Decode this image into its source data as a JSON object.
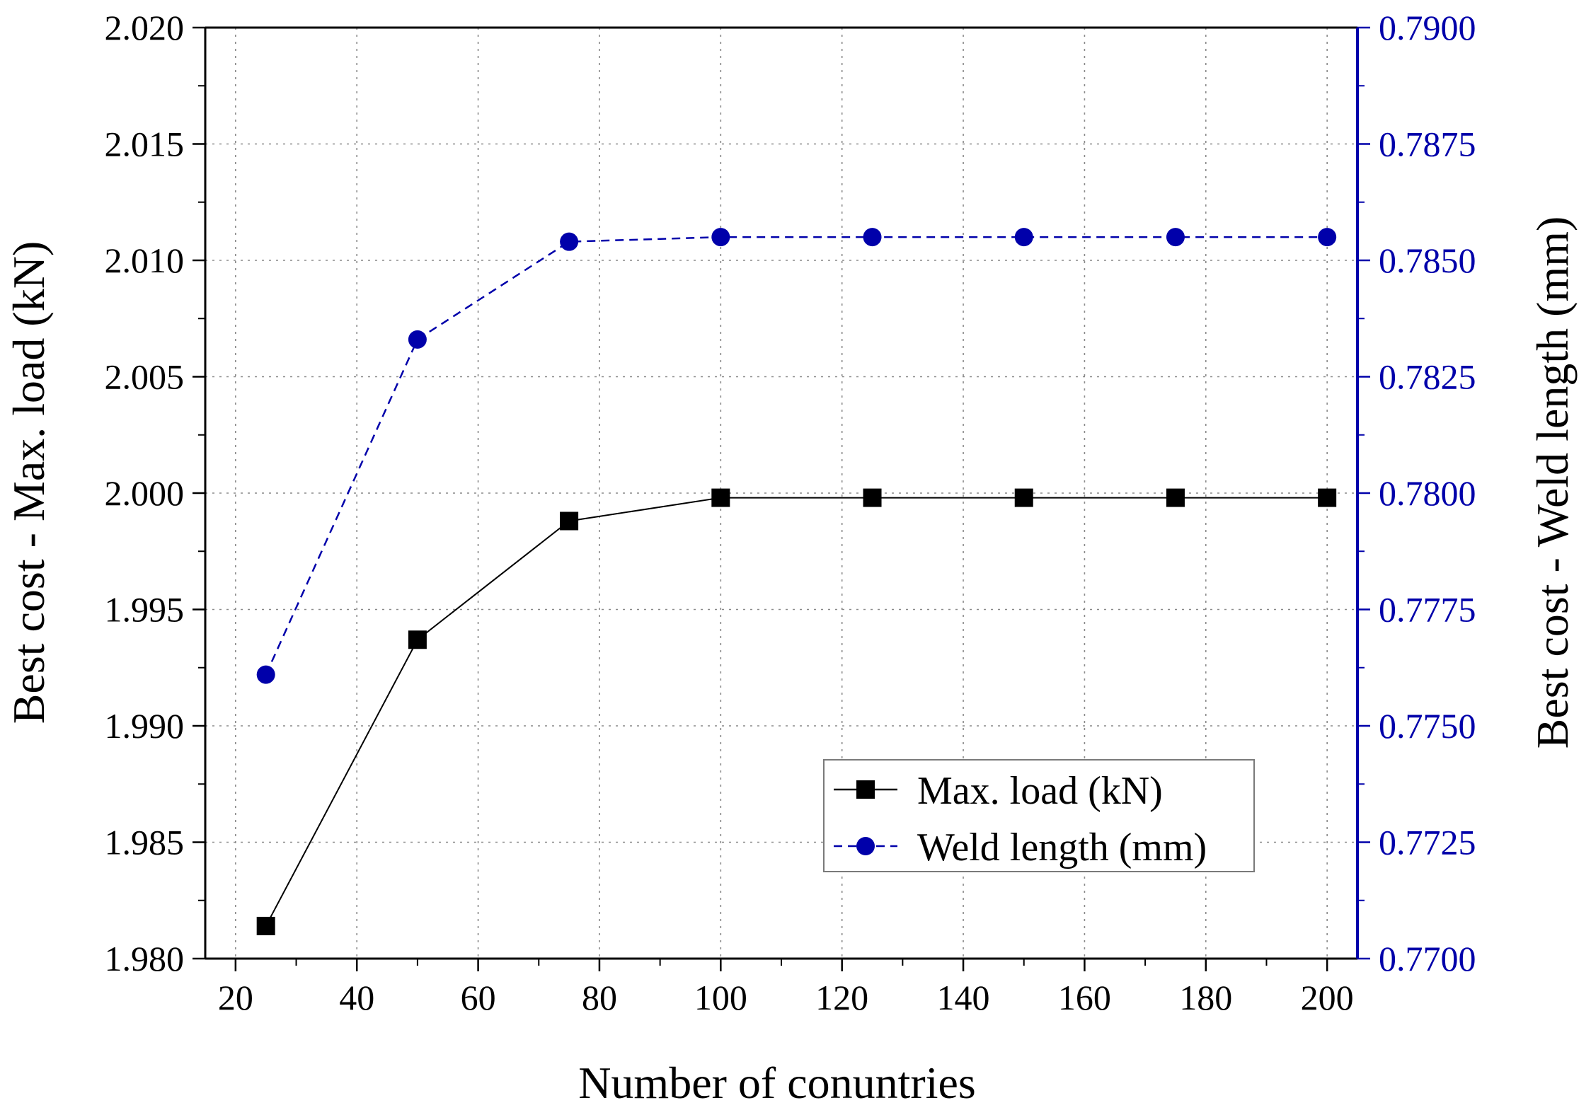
{
  "chart_data": {
    "type": "line",
    "title": "",
    "xlabel": "Number of conuntries",
    "ylabel_left": "Best cost - Max. load (kN)",
    "ylabel_right": "Best cost - Weld length (mm)",
    "x": [
      25,
      50,
      75,
      100,
      125,
      150,
      175,
      200
    ],
    "xlim": [
      15,
      205
    ],
    "xticks": [
      20,
      40,
      60,
      80,
      100,
      120,
      140,
      160,
      180,
      200
    ],
    "ylim_left": [
      1.98,
      2.02
    ],
    "yticks_left": [
      "1.980",
      "1.985",
      "1.990",
      "1.995",
      "2.000",
      "2.005",
      "2.010",
      "2.015",
      "2.020"
    ],
    "ylim_right": [
      0.77,
      0.79
    ],
    "yticks_right": [
      "0.7700",
      "0.7725",
      "0.7750",
      "0.7775",
      "0.7800",
      "0.7825",
      "0.7850",
      "0.7875",
      "0.7900"
    ],
    "grid": true,
    "legend_position": "lower-right",
    "series": [
      {
        "name": "Max. load (kN)",
        "axis": "left",
        "color": "#000000",
        "marker": "square",
        "line_style": "solid",
        "values": [
          1.9814,
          1.9937,
          1.9988,
          1.9998,
          1.9998,
          1.9998,
          1.9998,
          1.9998
        ]
      },
      {
        "name": "Weld length (mm)",
        "axis": "right",
        "color": "#0000aa",
        "marker": "circle",
        "line_style": "dashed",
        "values": [
          0.7761,
          0.7833,
          0.7854,
          0.7855,
          0.7855,
          0.7855,
          0.7855,
          0.7855
        ]
      }
    ]
  },
  "colors": {
    "left_axis": "#000000",
    "right_axis": "#0000aa",
    "grid": "#8a8a8a"
  }
}
